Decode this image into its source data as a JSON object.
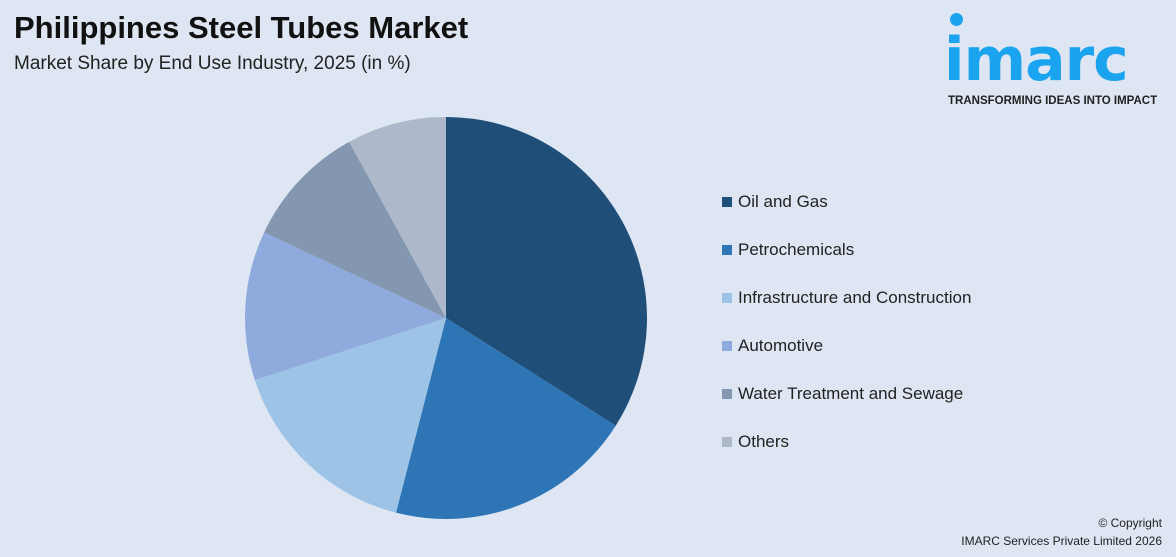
{
  "chart_data": {
    "type": "pie",
    "title": "Philippines Steel Tubes Market",
    "subtitle": "Market Share by End Use Industry, 2025 (in %)",
    "categories": [
      "Oil and Gas",
      "Petrochemicals",
      "Infrastructure and Construction",
      "Automotive",
      "Water Treatment and Sewage",
      "Others"
    ],
    "values": [
      34,
      20,
      16,
      12,
      10,
      8
    ],
    "colors": [
      "#1f4e79",
      "#2e75b6",
      "#9dc3e6",
      "#8faadc",
      "#8497b0",
      "#adb9ca"
    ],
    "legend_position": "right"
  },
  "logo": {
    "word": "imarc",
    "tagline": "TRANSFORMING IDEAS INTO IMPACT"
  },
  "footer": {
    "copyright": "© Copyright",
    "company": "IMARC Services Private Limited 2026"
  }
}
